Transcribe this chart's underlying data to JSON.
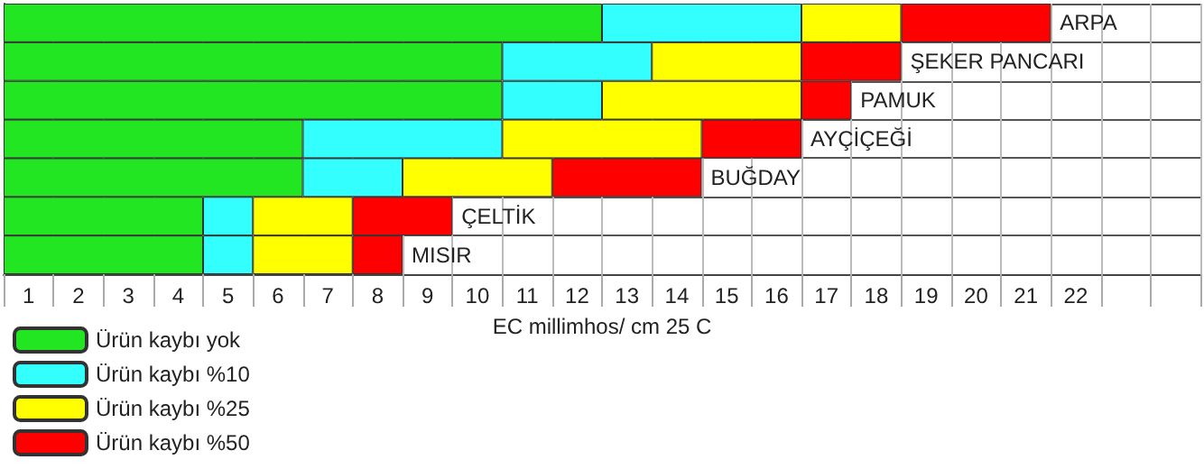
{
  "chart_data": {
    "type": "bar",
    "orientation": "horizontal",
    "stacked": true,
    "categories": [
      "ARPA",
      "ŞEKER PANCARI",
      "PAMUK",
      "AYÇİÇEĞİ",
      "BUĞDAY",
      "ÇELTİK",
      "MISIR"
    ],
    "series": [
      {
        "name": "Ürün kaybı yok",
        "color": "#22e622",
        "values": [
          12,
          10,
          10,
          6,
          6,
          4,
          4
        ]
      },
      {
        "name": "Ürün kaybı %10",
        "color": "#33ffff",
        "values": [
          4,
          3,
          2,
          4,
          2,
          1,
          1
        ]
      },
      {
        "name": "Ürün kaybı %25",
        "color": "#ffff00",
        "values": [
          2,
          3,
          4,
          4,
          3,
          2,
          2
        ]
      },
      {
        "name": "Ürün kaybı %50",
        "color": "#ff0000",
        "values": [
          3,
          2,
          1,
          2,
          3,
          2,
          1
        ]
      }
    ],
    "xlabel": "EC millimhos/ cm 25 C",
    "xlim": [
      0,
      24
    ],
    "xticks": [
      {
        "value": 0,
        "label": null
      },
      {
        "value": 0.5,
        "label": "1"
      },
      {
        "value": 1,
        "label": null
      },
      {
        "value": 1.5,
        "label": "2"
      },
      {
        "value": 2,
        "label": null
      },
      {
        "value": 2.5,
        "label": "3"
      },
      {
        "value": 3,
        "label": null
      },
      {
        "value": 3.5,
        "label": "4"
      },
      {
        "value": 4,
        "label": null
      },
      {
        "value": 4.5,
        "label": "5"
      },
      {
        "value": 5,
        "label": null
      },
      {
        "value": 5.5,
        "label": "6"
      },
      {
        "value": 6,
        "label": null
      },
      {
        "value": 6.5,
        "label": "7"
      },
      {
        "value": 7,
        "label": null
      },
      {
        "value": 7.5,
        "label": "8"
      },
      {
        "value": 8,
        "label": null
      },
      {
        "value": 8.5,
        "label": "9"
      },
      {
        "value": 9,
        "label": null
      },
      {
        "value": 9.5,
        "label": "10"
      },
      {
        "value": 10,
        "label": null
      },
      {
        "value": 10.5,
        "label": "11"
      },
      {
        "value": 11,
        "label": null
      },
      {
        "value": 11.5,
        "label": "12"
      },
      {
        "value": 12,
        "label": null
      },
      {
        "value": 12.5,
        "label": "13"
      },
      {
        "value": 13,
        "label": null
      },
      {
        "value": 13.5,
        "label": "14"
      },
      {
        "value": 14,
        "label": null
      },
      {
        "value": 14.5,
        "label": "15"
      },
      {
        "value": 15,
        "label": null
      },
      {
        "value": 15.5,
        "label": "16"
      },
      {
        "value": 16,
        "label": null
      },
      {
        "value": 16.5,
        "label": "17"
      },
      {
        "value": 17,
        "label": null
      },
      {
        "value": 17.5,
        "label": "18"
      },
      {
        "value": 18,
        "label": null
      },
      {
        "value": 18.5,
        "label": "19"
      },
      {
        "value": 19,
        "label": null
      },
      {
        "value": 19.5,
        "label": "20"
      },
      {
        "value": 20,
        "label": null
      },
      {
        "value": 20.5,
        "label": "21"
      },
      {
        "value": 21,
        "label": null
      },
      {
        "value": 21.5,
        "label": "22"
      },
      {
        "value": 22,
        "label": null
      },
      {
        "value": 23,
        "label": null
      },
      {
        "value": 24,
        "label": null
      }
    ],
    "grid": true,
    "legend": "bottom left",
    "tick_labels": "x"
  }
}
